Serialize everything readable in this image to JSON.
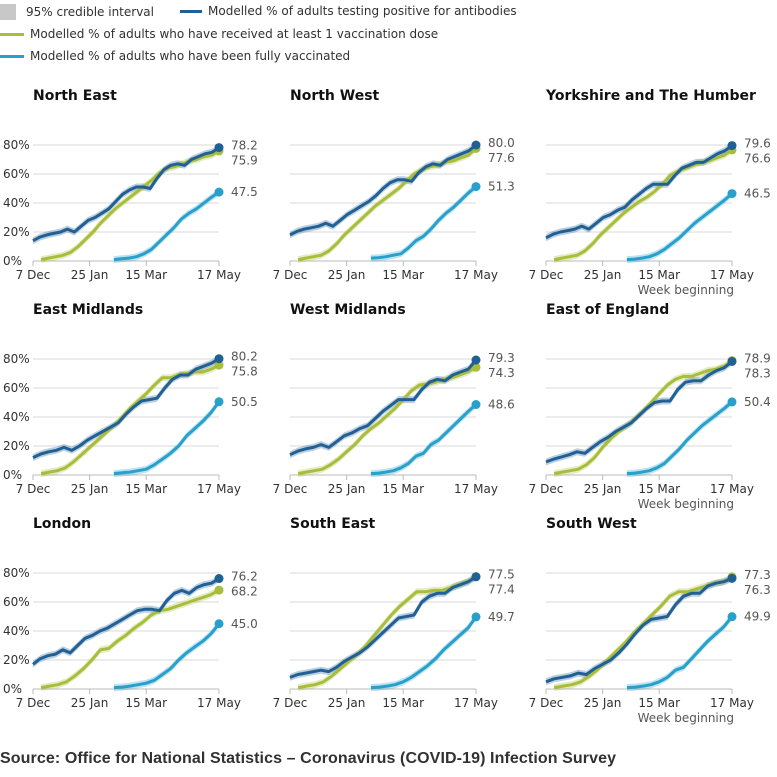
{
  "legend": {
    "ci_label": "95% credible interval",
    "antibodies_label": "Modelled % of adults testing positive for antibodies",
    "dose1_label": "Modelled % of adults who have received at least 1 vaccination dose",
    "full_label": "Modelled % of adults who have been fully vaccinated"
  },
  "colors": {
    "antibodies": "#206095",
    "dose1": "#a8bd3a",
    "full": "#27a0cc",
    "ci": "#c8c8c8",
    "grid": "#d9d9d9"
  },
  "source": "Source: Office for National Statistics – Coronavirus (COVID-19) Infection Survey",
  "chart_data": {
    "type": "line",
    "title": "",
    "xlabel": "Week beginning",
    "ylabel": "",
    "ylim": [
      0,
      80
    ],
    "y_ticks": [
      "0%",
      "20%",
      "40%",
      "60%",
      "80%"
    ],
    "x_ticks": [
      "7 Dec",
      "25 Jan",
      "15 Mar",
      "17 May"
    ],
    "x_tick_weeks": [
      0,
      7,
      14,
      23
    ],
    "weeks": 24,
    "grid": true,
    "series_names": [
      "Modelled % of adults testing positive for antibodies",
      "Modelled % of adults who have received at least 1 vaccination dose",
      "Modelled % of adults who have been fully vaccinated"
    ],
    "panels": [
      {
        "region": "North East",
        "antibodies": [
          14,
          16.5,
          18,
          19,
          20,
          22,
          20,
          24,
          28,
          30,
          33,
          36,
          41,
          46,
          49,
          51,
          51,
          50,
          57,
          63,
          66,
          67,
          66,
          70,
          72,
          74,
          75,
          78.2
        ],
        "dose1": [
          null,
          1,
          2,
          3,
          4,
          6,
          10,
          15,
          20,
          26,
          31,
          36,
          40,
          44,
          48,
          52,
          56,
          61,
          64,
          65,
          67,
          69,
          70,
          72,
          73,
          75.9
        ],
        "full": [
          null,
          null,
          null,
          null,
          null,
          null,
          null,
          null,
          null,
          null,
          1,
          1.5,
          2,
          3,
          5,
          8,
          13,
          18,
          23,
          29,
          33,
          36,
          40,
          44,
          47.5
        ],
        "labels": {
          "antibodies": "78.2",
          "dose1": "75.9",
          "full": "47.5"
        }
      },
      {
        "region": "North West",
        "antibodies": [
          18,
          20.5,
          22,
          23,
          24,
          26,
          24,
          28,
          32,
          35,
          38,
          41,
          45,
          50,
          54,
          56,
          56,
          55,
          61,
          65,
          67,
          66,
          70,
          72,
          74,
          76,
          80.0
        ],
        "dose1": [
          null,
          1,
          2,
          3,
          4,
          7,
          12,
          18,
          23,
          28,
          33,
          38,
          42,
          46,
          50,
          55,
          60,
          63,
          65,
          66,
          68,
          69,
          71,
          73,
          77.6
        ],
        "full": [
          null,
          null,
          null,
          null,
          null,
          null,
          null,
          null,
          null,
          null,
          2,
          2.3,
          3,
          4,
          5,
          9,
          14,
          17,
          22,
          28,
          33,
          37,
          42,
          47,
          51.3
        ],
        "labels": {
          "antibodies": "80.0",
          "dose1": "77.6",
          "full": "51.3"
        }
      },
      {
        "region": "Yorkshire and The Humber",
        "antibodies": [
          16,
          18.5,
          20,
          21,
          22,
          24,
          22,
          26,
          30,
          32,
          35,
          37,
          42,
          46,
          50,
          53,
          53,
          53,
          59,
          64,
          66,
          68,
          68,
          71,
          74,
          76,
          79.6
        ],
        "dose1": [
          null,
          1,
          2,
          3,
          4,
          7,
          12,
          18,
          23,
          28,
          33,
          37,
          41,
          44,
          48,
          53,
          59,
          62,
          64,
          66,
          68,
          69,
          71,
          73,
          76.6
        ],
        "full": [
          null,
          null,
          null,
          null,
          null,
          null,
          null,
          null,
          null,
          null,
          1,
          1.3,
          2,
          3,
          5,
          8,
          12,
          16,
          21,
          26,
          30,
          34,
          38,
          42,
          46.5
        ],
        "labels": {
          "antibodies": "79.6",
          "dose1": "76.6",
          "full": "46.5"
        }
      },
      {
        "region": "East Midlands",
        "antibodies": [
          12,
          14.5,
          16,
          17,
          19,
          17,
          20,
          24,
          27,
          30,
          33,
          36,
          42,
          47,
          51,
          52,
          53,
          60,
          66,
          69,
          69,
          73,
          75,
          77,
          80.2
        ],
        "dose1": [
          null,
          1,
          2,
          3,
          5,
          9,
          14,
          19,
          24,
          29,
          34,
          40,
          46,
          51,
          56,
          62,
          67,
          67,
          69,
          70,
          71,
          71,
          73,
          75.8
        ],
        "full": [
          null,
          null,
          null,
          null,
          null,
          null,
          null,
          null,
          null,
          null,
          1,
          1.5,
          2,
          3,
          4,
          7,
          11,
          15,
          20,
          27,
          32,
          37,
          43,
          50.5
        ],
        "labels": {
          "antibodies": "80.2",
          "dose1": "75.8",
          "full": "50.5"
        }
      },
      {
        "region": "West Midlands",
        "antibodies": [
          14,
          16.5,
          18,
          19,
          21,
          19,
          23,
          27,
          29,
          32,
          34,
          39,
          44,
          48,
          52,
          52,
          52,
          59,
          64,
          66,
          65,
          69,
          71,
          73,
          79.3
        ],
        "dose1": [
          null,
          1,
          2,
          3,
          4,
          7,
          11,
          16,
          21,
          27,
          32,
          36,
          41,
          46,
          52,
          58,
          62,
          63,
          64,
          66,
          67,
          69,
          71,
          74.3
        ],
        "full": [
          null,
          null,
          null,
          null,
          null,
          null,
          null,
          null,
          null,
          null,
          1,
          1.3,
          2,
          3,
          5,
          8,
          13,
          15,
          21,
          24,
          29,
          34,
          39,
          44,
          48.6
        ],
        "labels": {
          "antibodies": "79.3",
          "dose1": "74.3",
          "full": "48.6"
        }
      },
      {
        "region": "East of England",
        "antibodies": [
          9,
          11,
          12.5,
          14,
          16,
          15,
          19,
          23,
          26,
          30,
          33,
          36,
          41,
          46,
          50,
          51,
          51,
          59,
          64,
          65,
          65,
          69,
          72,
          74,
          78.3
        ],
        "dose1": [
          null,
          1,
          2,
          3,
          4,
          7,
          12,
          19,
          25,
          30,
          34,
          39,
          44,
          50,
          56,
          62,
          66,
          68,
          68,
          70,
          72,
          73,
          75,
          78.9
        ],
        "full": [
          null,
          null,
          null,
          null,
          null,
          null,
          null,
          null,
          null,
          null,
          1,
          1.3,
          2,
          3,
          5,
          8,
          13,
          18,
          24,
          29,
          34,
          38,
          42,
          46,
          50.4
        ],
        "labels": {
          "antibodies": "78.3",
          "dose1": "78.9",
          "full": "50.4"
        }
      },
      {
        "region": "London",
        "antibodies": [
          17,
          21,
          23,
          24,
          27,
          25,
          30,
          35,
          37,
          40,
          42,
          45,
          48,
          51,
          54,
          55,
          55,
          54,
          61,
          66,
          68,
          66,
          70,
          72,
          73,
          76.2
        ],
        "dose1": [
          null,
          1,
          2,
          3,
          5,
          9,
          14,
          20,
          27,
          28,
          33,
          37,
          42,
          46,
          51,
          54,
          55,
          57,
          59,
          61,
          63,
          65,
          68.2
        ],
        "full": [
          null,
          null,
          null,
          null,
          null,
          null,
          null,
          null,
          null,
          null,
          1,
          1.3,
          2,
          3,
          4,
          6,
          10,
          14,
          20,
          25,
          29,
          33,
          38,
          45.0
        ],
        "labels": {
          "antibodies": "76.2",
          "dose1": "68.2",
          "full": "45.0"
        }
      },
      {
        "region": "South East",
        "antibodies": [
          8,
          10,
          11,
          12,
          13,
          12,
          15,
          19,
          22,
          25,
          29,
          34,
          39,
          44,
          49,
          50,
          51,
          60,
          64,
          66,
          66,
          70,
          72,
          74,
          77.4
        ],
        "dose1": [
          null,
          1,
          2,
          3,
          5,
          9,
          14,
          19,
          24,
          30,
          37,
          44,
          51,
          57,
          62,
          67,
          67,
          68,
          68,
          70,
          72,
          74,
          77.5
        ],
        "full": [
          null,
          null,
          null,
          null,
          null,
          null,
          null,
          null,
          null,
          null,
          1,
          1.3,
          2,
          3,
          5,
          8,
          12,
          16,
          21,
          27,
          32,
          37,
          42,
          49.7
        ],
        "labels": {
          "antibodies": "77.4",
          "dose1": "77.5",
          "full": "49.7"
        }
      },
      {
        "region": "South West",
        "antibodies": [
          5,
          7,
          8,
          9,
          11,
          10,
          14,
          17,
          20,
          25,
          31,
          38,
          44,
          48,
          49,
          50,
          58,
          64,
          66,
          66,
          71,
          73,
          74,
          76.3
        ],
        "dose1": [
          null,
          1,
          2,
          3,
          5,
          9,
          14,
          20,
          26,
          32,
          39,
          45,
          51,
          57,
          64,
          67,
          67,
          69,
          71,
          73,
          74,
          77.3
        ],
        "full": [
          null,
          null,
          null,
          null,
          null,
          null,
          null,
          null,
          null,
          null,
          1,
          1.3,
          2,
          3,
          5,
          8,
          13,
          15,
          21,
          27,
          33,
          38,
          43,
          49.9
        ],
        "labels": {
          "antibodies": "76.3",
          "dose1": "77.3",
          "full": "49.9"
        }
      }
    ]
  }
}
